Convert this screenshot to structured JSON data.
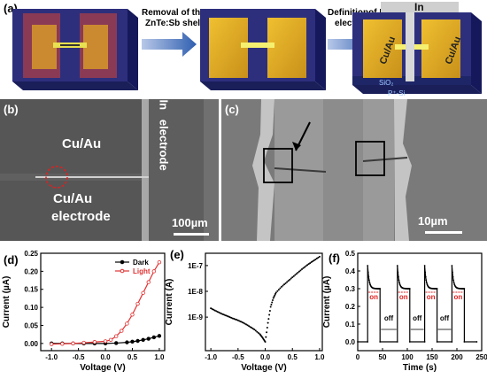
{
  "panels": {
    "a": {
      "label": "(a)",
      "step1_text": [
        "Removal of the",
        "ZnTe:Sb shell"
      ],
      "step2_text": [
        "Definitionof In",
        "electrode"
      ],
      "in_label": "In",
      "cuau_left": "Cu/Au",
      "cuau_right": "Cu/Au",
      "sio2": "SiO₂",
      "psi": "P⁺-Si"
    },
    "b": {
      "label": "(b)",
      "cuau_top": "Cu/Au",
      "cuau_bottom": [
        "Cu/Au",
        "electrode"
      ],
      "in_electrode": "In   electrode",
      "scale": "100µm"
    },
    "c": {
      "label": "(c)",
      "scale": "10µm"
    }
  },
  "chart_data": [
    {
      "panel": "(d)",
      "type": "line",
      "xlabel": "Voltage (V)",
      "ylabel": "Current (µA)",
      "xlim": [
        -1.2,
        1.1
      ],
      "ylim": [
        -0.02,
        0.25
      ],
      "xticks": [
        "-1.0",
        "-0.5",
        "0.0",
        "0.5",
        "1.0"
      ],
      "yticks": [
        "0.00",
        "0.05",
        "0.10",
        "0.15",
        "0.20",
        "0.25"
      ],
      "legend_position": "top-right",
      "series": [
        {
          "name": "Dark",
          "color": "#000000",
          "marker": "filled",
          "x": [
            -1.0,
            -0.8,
            -0.6,
            -0.4,
            -0.2,
            0.0,
            0.2,
            0.4,
            0.5,
            0.6,
            0.7,
            0.8,
            0.9,
            1.0
          ],
          "y": [
            0.0,
            0.0,
            0.0,
            0.0,
            0.0,
            0.0,
            0.001,
            0.003,
            0.005,
            0.007,
            0.01,
            0.013,
            0.017,
            0.021
          ]
        },
        {
          "name": "Light",
          "color": "#e23030",
          "marker": "open",
          "x": [
            -1.0,
            -0.8,
            -0.6,
            -0.4,
            -0.2,
            0.0,
            0.1,
            0.2,
            0.3,
            0.4,
            0.5,
            0.6,
            0.7,
            0.8,
            0.9,
            1.0
          ],
          "y": [
            -0.002,
            -0.001,
            0.0,
            0.002,
            0.004,
            0.006,
            0.01,
            0.02,
            0.035,
            0.055,
            0.08,
            0.11,
            0.14,
            0.17,
            0.2,
            0.225
          ]
        }
      ]
    },
    {
      "panel": "(e)",
      "type": "line",
      "xlabel": "Voltage (V)",
      "ylabel": "Current (A)",
      "log_y": true,
      "xlim": [
        -1.1,
        1.05
      ],
      "ylim": [
        5e-11,
        3e-07
      ],
      "xticks": [
        "-1.0",
        "-0.5",
        "0.0",
        "0.5",
        "1.0"
      ],
      "yticks": [
        "1E-9",
        "1E-8",
        "1E-7"
      ],
      "series": [
        {
          "color": "#000000",
          "x": [
            -1.0,
            -0.9,
            -0.8,
            -0.7,
            -0.6,
            -0.5,
            -0.4,
            -0.3,
            -0.2,
            -0.1,
            -0.05,
            0.0,
            0.05,
            0.1,
            0.15,
            0.2,
            0.3,
            0.4,
            0.5,
            0.6,
            0.7,
            0.8,
            0.9,
            1.0
          ],
          "y": [
            2.2e-09,
            1.7e-09,
            1.35e-09,
            1.1e-09,
            9e-10,
            7.5e-10,
            6e-10,
            4.5e-10,
            3.3e-10,
            2.2e-10,
            1.6e-10,
            1.1e-10,
            6e-10,
            2.5e-09,
            5.5e-09,
            9e-09,
            1.5e-08,
            2.3e-08,
            3.5e-08,
            5.3e-08,
            8e-08,
            1.15e-07,
            1.6e-07,
            2.2e-07
          ]
        }
      ]
    },
    {
      "panel": "(f)",
      "type": "line",
      "xlabel": "Time (s)",
      "ylabel": "Current (µA)",
      "xlim": [
        0,
        250
      ],
      "ylim": [
        -0.05,
        0.5
      ],
      "xticks": [
        "0",
        "50",
        "100",
        "150",
        "200",
        "250"
      ],
      "yticks": [
        "0.0",
        "0.1",
        "0.2",
        "0.3",
        "0.4",
        "0.5"
      ],
      "on_label": "on",
      "off_label": "off",
      "on_intervals": [
        [
          20,
          45
        ],
        [
          80,
          105
        ],
        [
          135,
          160
        ],
        [
          190,
          215
        ]
      ],
      "peak": 0.43,
      "plateau": 0.3,
      "series": [
        {
          "color": "#000000"
        }
      ]
    }
  ]
}
